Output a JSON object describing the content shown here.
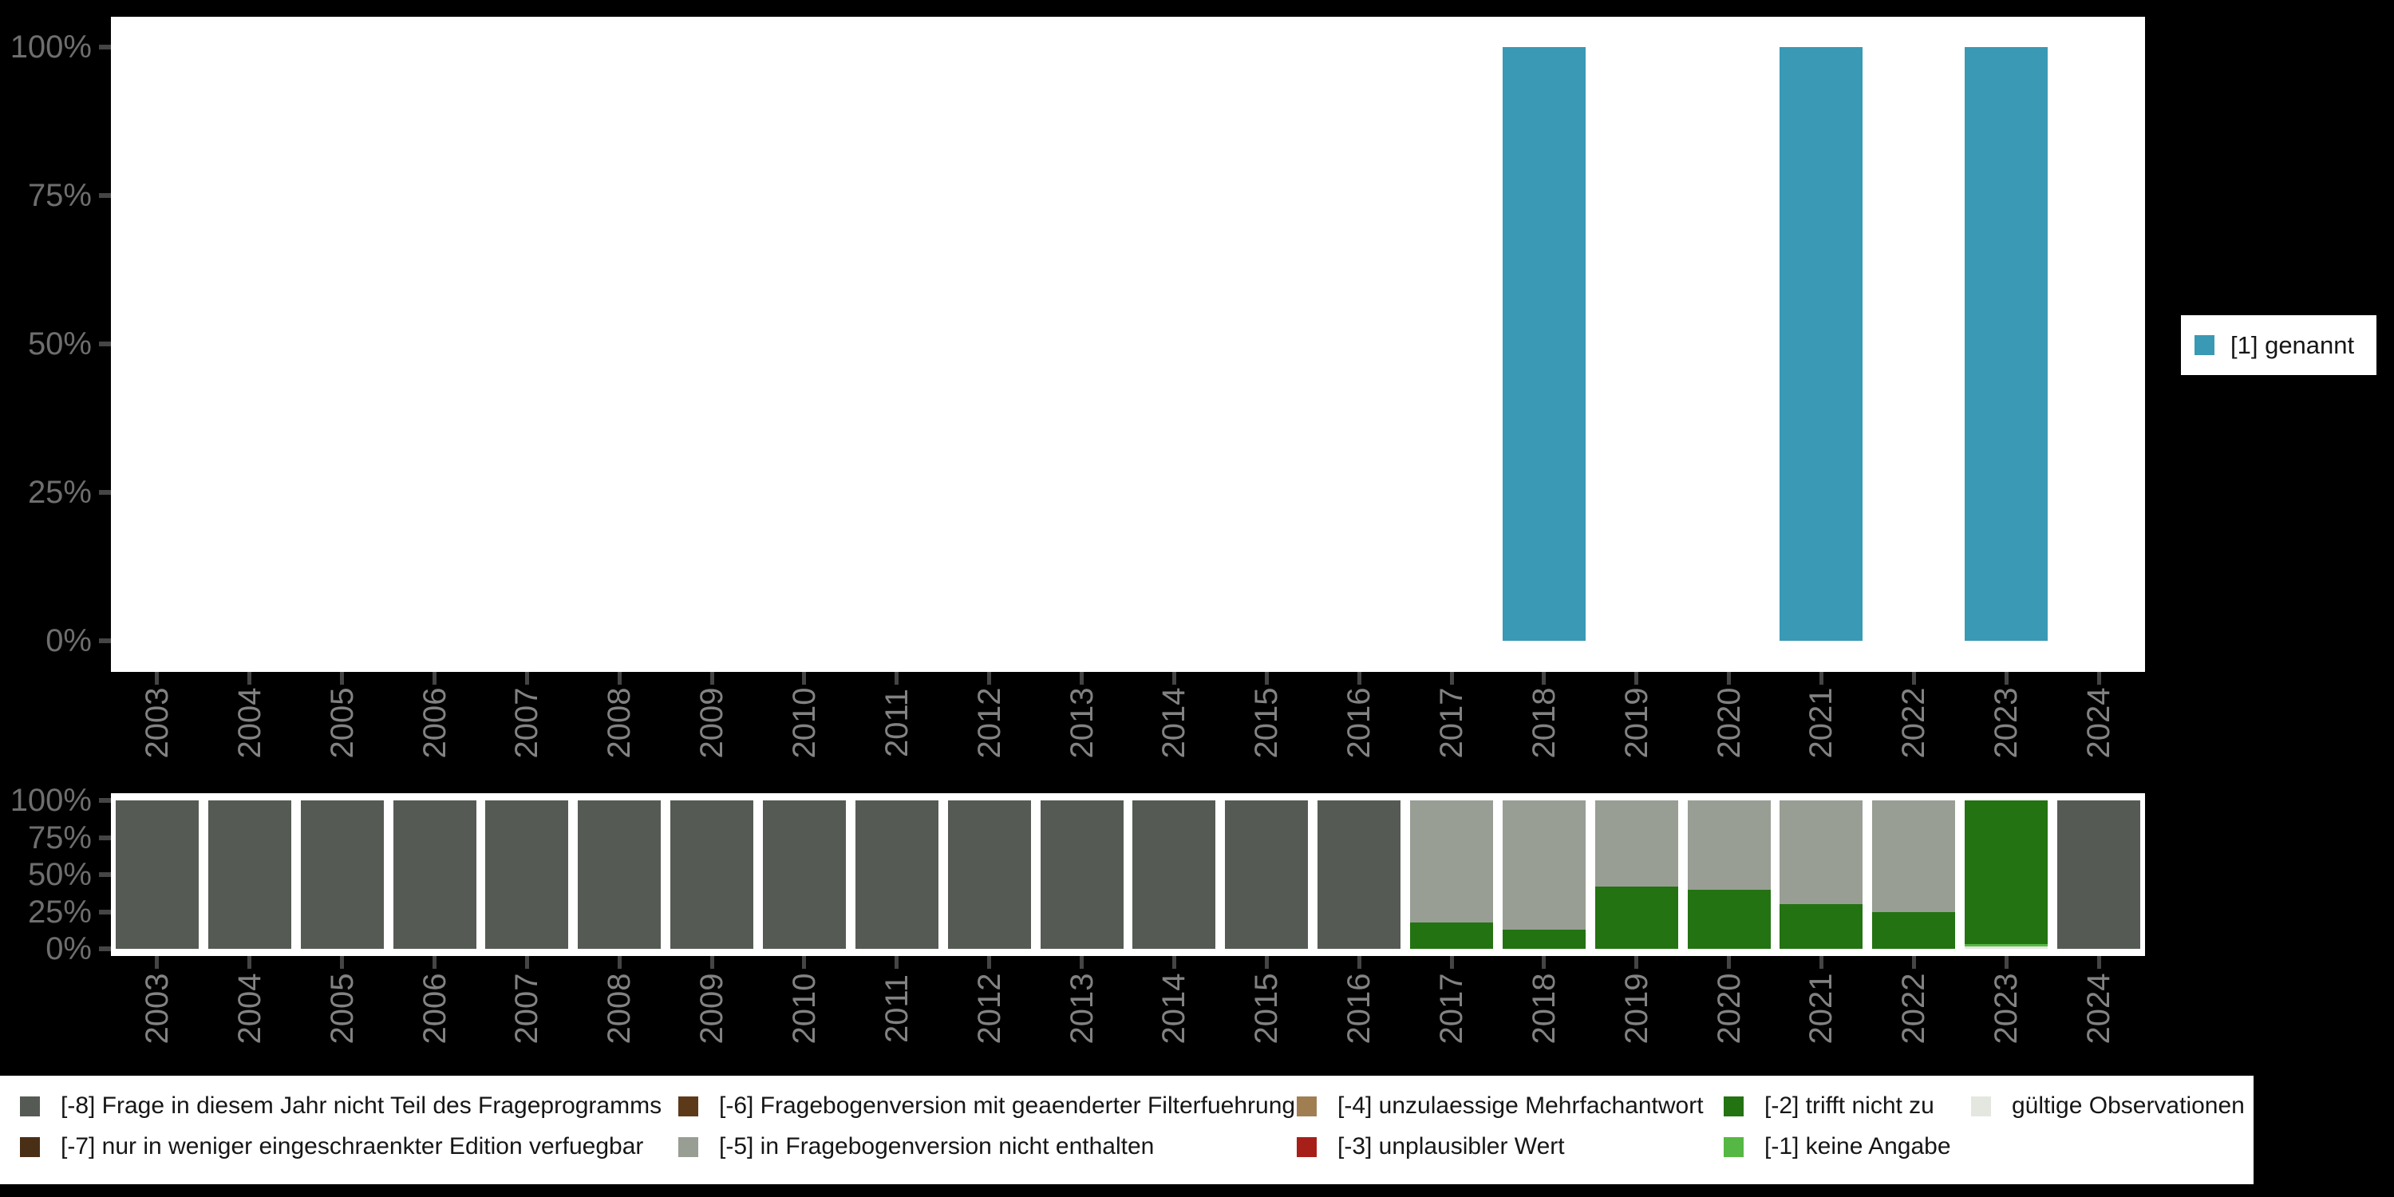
{
  "figure": {
    "background": "#000000",
    "panel_background": "#FFFFFF",
    "axis_label_color": "#7A7A7A",
    "tick_color": "#454545"
  },
  "colors": {
    "named": "#3A99B4",
    "m8": "#555B54",
    "m7": "#4A2F17",
    "m6": "#5C3A19",
    "m5": "#989E94",
    "m4": "#A17E52",
    "m3": "#A62019",
    "m2": "#237312",
    "m1": "#56B844",
    "valid": "#E4E7E0"
  },
  "chart_data": [
    {
      "type": "bar",
      "title": "",
      "categories": [
        "2003",
        "2004",
        "2005",
        "2006",
        "2007",
        "2008",
        "2009",
        "2010",
        "2011",
        "2012",
        "2013",
        "2014",
        "2015",
        "2016",
        "2017",
        "2018",
        "2019",
        "2020",
        "2021",
        "2022",
        "2023",
        "2024"
      ],
      "series": [
        {
          "name": "[1] genannt",
          "color": "#3A99B4",
          "values": [
            null,
            null,
            null,
            null,
            null,
            null,
            null,
            null,
            null,
            null,
            null,
            null,
            null,
            null,
            null,
            100,
            null,
            null,
            100,
            null,
            100,
            null
          ]
        }
      ],
      "xlabel": "",
      "ylabel": "",
      "ylim": [
        0,
        100
      ],
      "ytick_values": [
        100,
        75,
        50,
        25,
        0
      ],
      "ytick_labels": [
        "100%",
        "75%",
        "50%",
        "25%",
        "0%"
      ],
      "grid": false,
      "legend_position": "right"
    },
    {
      "type": "stacked-bar",
      "title": "",
      "categories": [
        "2003",
        "2004",
        "2005",
        "2006",
        "2007",
        "2008",
        "2009",
        "2010",
        "2011",
        "2012",
        "2013",
        "2014",
        "2015",
        "2016",
        "2017",
        "2018",
        "2019",
        "2020",
        "2021",
        "2022",
        "2023",
        "2024"
      ],
      "xlabel": "",
      "ylabel": "",
      "ylim": [
        0,
        100
      ],
      "ytick_values": [
        100,
        75,
        50,
        25,
        0
      ],
      "ytick_labels": [
        "100%",
        "75%",
        "50%",
        "25%",
        "0%"
      ],
      "grid": false,
      "legend_position": "bottom",
      "bars": [
        {
          "year": "2003",
          "segments": [
            {
              "key": "m8",
              "pct": 100
            }
          ]
        },
        {
          "year": "2004",
          "segments": [
            {
              "key": "m8",
              "pct": 100
            }
          ]
        },
        {
          "year": "2005",
          "segments": [
            {
              "key": "m8",
              "pct": 100
            }
          ]
        },
        {
          "year": "2006",
          "segments": [
            {
              "key": "m8",
              "pct": 100
            }
          ]
        },
        {
          "year": "2007",
          "segments": [
            {
              "key": "m8",
              "pct": 100
            }
          ]
        },
        {
          "year": "2008",
          "segments": [
            {
              "key": "m8",
              "pct": 100
            }
          ]
        },
        {
          "year": "2009",
          "segments": [
            {
              "key": "m8",
              "pct": 100
            }
          ]
        },
        {
          "year": "2010",
          "segments": [
            {
              "key": "m8",
              "pct": 100
            }
          ]
        },
        {
          "year": "2011",
          "segments": [
            {
              "key": "m8",
              "pct": 100
            }
          ]
        },
        {
          "year": "2012",
          "segments": [
            {
              "key": "m8",
              "pct": 100
            }
          ]
        },
        {
          "year": "2013",
          "segments": [
            {
              "key": "m8",
              "pct": 100
            }
          ]
        },
        {
          "year": "2014",
          "segments": [
            {
              "key": "m8",
              "pct": 100
            }
          ]
        },
        {
          "year": "2015",
          "segments": [
            {
              "key": "m8",
              "pct": 100
            }
          ]
        },
        {
          "year": "2016",
          "segments": [
            {
              "key": "m8",
              "pct": 100
            }
          ]
        },
        {
          "year": "2017",
          "segments": [
            {
              "key": "m2",
              "pct": 18
            },
            {
              "key": "m5",
              "pct": 82
            }
          ]
        },
        {
          "year": "2018",
          "segments": [
            {
              "key": "m2",
              "pct": 13
            },
            {
              "key": "m5",
              "pct": 87
            }
          ]
        },
        {
          "year": "2019",
          "segments": [
            {
              "key": "m2",
              "pct": 42
            },
            {
              "key": "m5",
              "pct": 58
            }
          ]
        },
        {
          "year": "2020",
          "segments": [
            {
              "key": "m2",
              "pct": 40
            },
            {
              "key": "m5",
              "pct": 60
            }
          ]
        },
        {
          "year": "2021",
          "segments": [
            {
              "key": "m2",
              "pct": 30
            },
            {
              "key": "m5",
              "pct": 70
            }
          ]
        },
        {
          "year": "2022",
          "segments": [
            {
              "key": "m2",
              "pct": 25
            },
            {
              "key": "m5",
              "pct": 75
            }
          ]
        },
        {
          "year": "2023",
          "segments": [
            {
              "key": "valid",
              "pct": 1.5
            },
            {
              "key": "m1",
              "pct": 1.5
            },
            {
              "key": "m2",
              "pct": 97
            }
          ]
        },
        {
          "year": "2024",
          "segments": [
            {
              "key": "m8",
              "pct": 100
            }
          ]
        }
      ]
    }
  ],
  "missing_legend": {
    "items": [
      {
        "key": "m8",
        "label": "[-8] Frage in diesem Jahr nicht Teil des Frageprogramms"
      },
      {
        "key": "m6",
        "label": "[-6] Fragebogenversion mit geaenderter Filterfuehrung"
      },
      {
        "key": "m4",
        "label": "[-4] unzulaessige Mehrfachantwort"
      },
      {
        "key": "m2",
        "label": "[-2] trifft nicht zu"
      },
      {
        "key": "valid",
        "label": "gültige Observationen"
      },
      {
        "key": "m7",
        "label": "[-7] nur in weniger eingeschraenkter Edition verfuegbar"
      },
      {
        "key": "m5",
        "label": "[-5] in Fragebogenversion nicht enthalten"
      },
      {
        "key": "m3",
        "label": "[-3] unplausibler Wert"
      },
      {
        "key": "m1",
        "label": "[-1] keine Angabe"
      }
    ]
  }
}
